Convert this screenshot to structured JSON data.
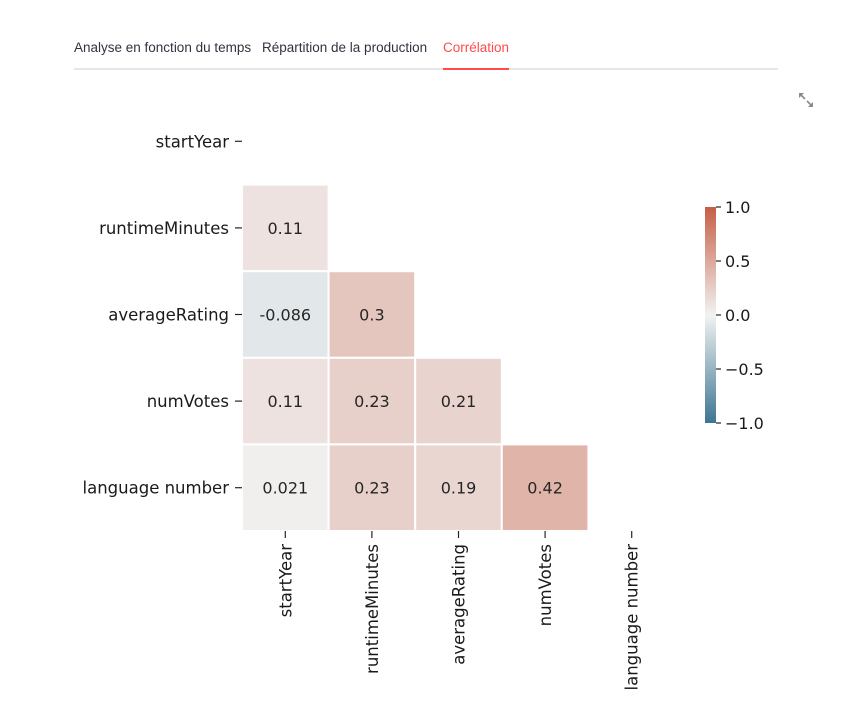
{
  "tabs": [
    {
      "label": "Analyse en fonction du temps",
      "active": false
    },
    {
      "label": "Répartition de la production",
      "active": false
    },
    {
      "label": "Corrélation",
      "active": true
    }
  ],
  "accent_color": "#ff4b4b",
  "fullscreen_icon": "expand-icon",
  "chart_data": {
    "type": "heatmap",
    "variables": [
      "startYear",
      "runtimeMinutes",
      "averageRating",
      "numVotes",
      "language number"
    ],
    "mask": "upper-triangle",
    "matrix": [
      [
        null,
        null,
        null,
        null,
        null
      ],
      [
        0.11,
        null,
        null,
        null,
        null
      ],
      [
        -0.086,
        0.3,
        null,
        null,
        null
      ],
      [
        0.11,
        0.23,
        0.21,
        null,
        null
      ],
      [
        0.021,
        0.23,
        0.19,
        0.42,
        null
      ]
    ],
    "labels": [
      [
        null,
        null,
        null,
        null,
        null
      ],
      [
        "0.11",
        null,
        null,
        null,
        null
      ],
      [
        "-0.086",
        "0.3",
        null,
        null,
        null
      ],
      [
        "0.11",
        "0.23",
        "0.21",
        null,
        null
      ],
      [
        "0.021",
        "0.23",
        "0.19",
        "0.42",
        null
      ]
    ],
    "colorbar": {
      "range": [
        -1.0,
        1.0
      ],
      "ticks": [
        "1.0",
        "0.5",
        "0.0",
        "−0.5",
        "−1.0"
      ],
      "tick_values": [
        1.0,
        0.5,
        0.0,
        -0.5,
        -1.0
      ],
      "color_negative": "#3d7592",
      "color_center": "#f2f2f2",
      "color_positive": "#c65e45"
    },
    "title": "",
    "xlabel": "",
    "ylabel": ""
  }
}
